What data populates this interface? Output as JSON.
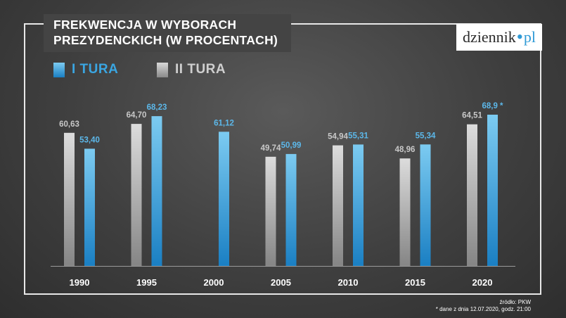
{
  "title": {
    "line1": "FREKWENCJA W WYBORACH",
    "line2": "PREZYDENCKICH (W PROCENTACH)"
  },
  "logo": {
    "name": "dziennik",
    "dot": "•",
    "suffix": "pl"
  },
  "colors": {
    "tura1_top": "#7ccbf1",
    "tura1_bottom": "#1a7fc3",
    "tura1_label": "#5cb8ea",
    "tura2_top": "#dcdcdc",
    "tura2_bottom": "#858585",
    "tura2_label": "#c8c8c8"
  },
  "footer": {
    "source": "źródło: PKW",
    "note": "* dane z dnia 12.07.2020, godz. 21:00"
  },
  "chart_data": {
    "type": "bar",
    "title": "FREKWENCJA W WYBORACH PREZYDENCKICH (W PROCENTACH)",
    "xlabel": "",
    "ylabel": "",
    "ylim": [
      0,
      70
    ],
    "grid": false,
    "legend": "top-left",
    "categories": [
      "1990",
      "1995",
      "2000",
      "2005",
      "2010",
      "2015",
      "2020"
    ],
    "series": [
      {
        "name": "II TURA",
        "values": [
          60.63,
          64.7,
          null,
          49.74,
          54.94,
          48.96,
          64.51
        ],
        "labels": [
          "60,63",
          "64,70",
          "",
          "49,74",
          "54,94",
          "48,96",
          "64,51"
        ]
      },
      {
        "name": "I TURA",
        "values": [
          53.4,
          68.23,
          61.12,
          50.99,
          55.31,
          55.34,
          68.9
        ],
        "labels": [
          "53,40",
          "68,23",
          "61,12",
          "50,99",
          "55,31",
          "55,34",
          "68,9 *"
        ]
      }
    ]
  }
}
